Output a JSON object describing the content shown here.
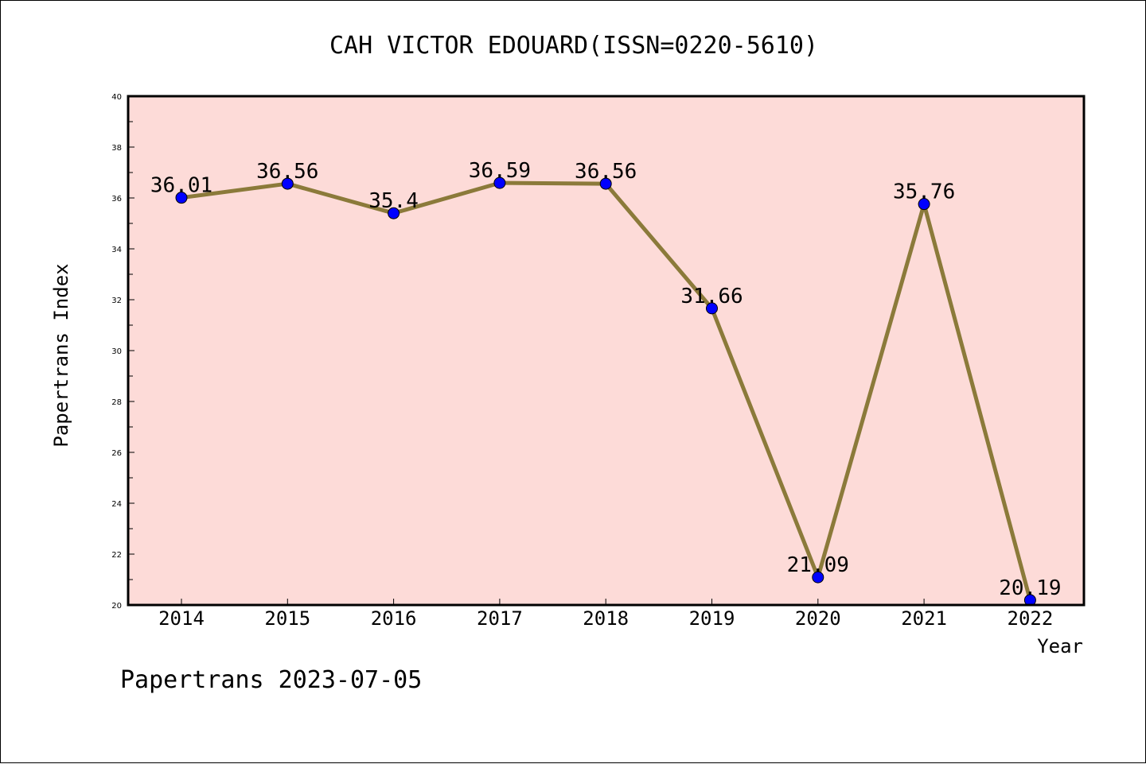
{
  "chart_data": {
    "type": "line",
    "title": "CAH VICTOR EDOUARD(ISSN=0220-5610)",
    "xlabel": "Year",
    "ylabel": "Papertrans Index",
    "categories": [
      "2014",
      "2015",
      "2016",
      "2017",
      "2018",
      "2019",
      "2020",
      "2021",
      "2022"
    ],
    "series": [
      {
        "values": [
          36.01,
          36.56,
          35.4,
          36.59,
          36.56,
          31.66,
          21.09,
          35.76,
          20.19
        ],
        "labels": [
          "36.01",
          "36.56",
          "35.4",
          "36.59",
          "36.56",
          "31.66",
          "21.09",
          "35.76",
          "20.19"
        ],
        "line_color": "#8b7a3a",
        "marker_color": "#0000ff"
      }
    ],
    "ylim": [
      20,
      40
    ],
    "yticks": [
      "20",
      "22",
      "24",
      "26",
      "28",
      "30",
      "32",
      "34",
      "36",
      "38",
      "40"
    ],
    "plot_background": "#fddbd8",
    "grid": false,
    "legend": "none"
  },
  "footer": "Papertrans 2023-07-05"
}
